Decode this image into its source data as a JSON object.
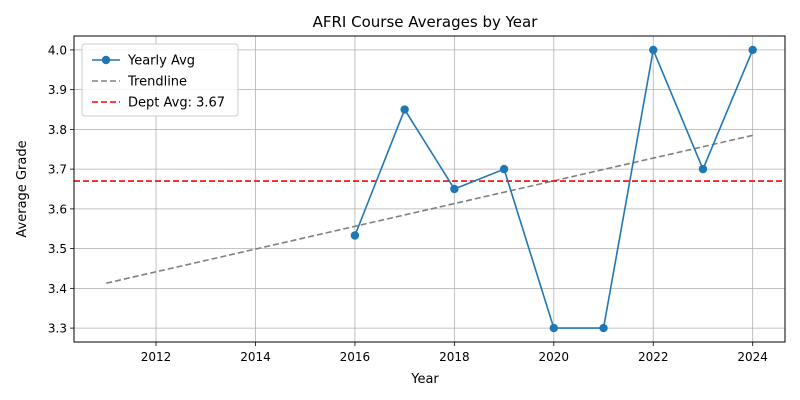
{
  "chart_data": {
    "type": "line",
    "title": "AFRI Course Averages by Year",
    "xlabel": "Year",
    "ylabel": "Average Grade",
    "xlim": [
      2010.35,
      2024.65
    ],
    "ylim": [
      3.265,
      4.035
    ],
    "xticks": [
      2012,
      2014,
      2016,
      2018,
      2020,
      2022,
      2024
    ],
    "yticks": [
      3.3,
      3.4,
      3.5,
      3.6,
      3.7,
      3.8,
      3.9,
      4.0
    ],
    "grid": true,
    "legend_position": "top-left",
    "series": [
      {
        "name": "Yearly Avg",
        "style": "solid-markers",
        "color": "#1f77b4",
        "x": [
          2016,
          2017,
          2018,
          2019,
          2020,
          2021,
          2022,
          2023,
          2024
        ],
        "y": [
          3.533,
          3.85,
          3.65,
          3.7,
          3.3,
          3.3,
          4.0,
          3.7,
          4.0
        ]
      },
      {
        "name": "Trendline",
        "style": "dashed",
        "color": "#808080",
        "x": [
          2011,
          2024
        ],
        "y": [
          3.413,
          3.785
        ]
      },
      {
        "name": "Dept Avg: 3.67",
        "style": "dashed-horizontal",
        "color": "#ff0000",
        "y": 3.67
      }
    ]
  }
}
